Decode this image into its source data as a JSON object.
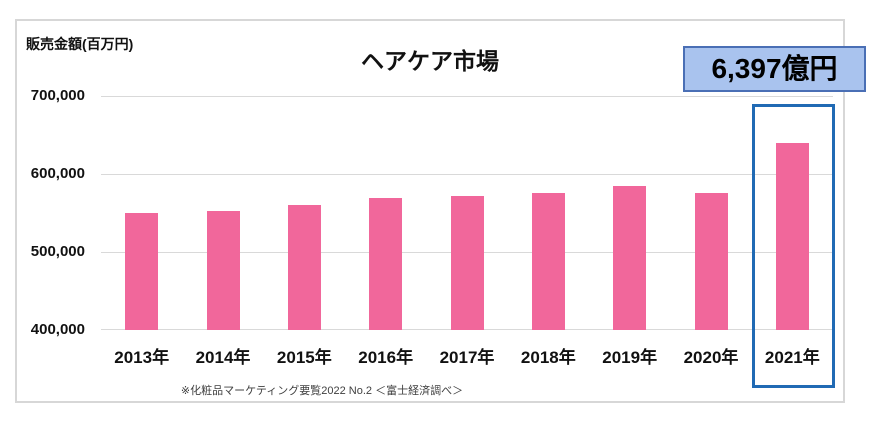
{
  "chart_data": {
    "type": "bar",
    "title": "ヘアケア市場",
    "unit_label": "販売金額(百万円)",
    "categories": [
      "2013年",
      "2014年",
      "2015年",
      "2016年",
      "2017年",
      "2018年",
      "2019年",
      "2020年",
      "2021年"
    ],
    "values": [
      550000,
      552000,
      560000,
      569000,
      572000,
      576000,
      585000,
      576000,
      639700
    ],
    "ylim": [
      400000,
      700000
    ],
    "y_tick_labels": [
      "700,000",
      "600,000",
      "500,000",
      "400,000"
    ],
    "grid": "horizontal",
    "legend": "none",
    "bar_color": "#f1679b",
    "grid_color": "#d9d9d9",
    "highlighted_category": "2021年",
    "footnote": "※化粧品マーケティング要覧2022 No.2 ＜富士経済調べ＞"
  },
  "callout": {
    "text": "6,397億円",
    "bg_color": "#a9c3ee",
    "border_color": "#4a6fb5"
  },
  "highlight_box": {
    "border_color": "#206ab4"
  }
}
